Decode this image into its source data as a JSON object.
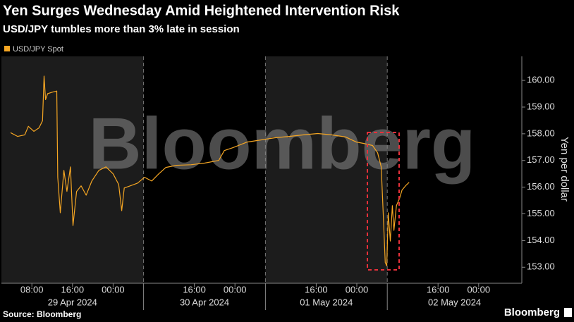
{
  "chart_data": {
    "type": "line",
    "title": "Yen Surges Wednesday Amid Heightened Intervention Risk",
    "subtitle": "USD/JPY tumbles more than 3% late in session",
    "y_label": "Yen per dollar",
    "watermark": "Bloomberg",
    "source": "Source: Bloomberg",
    "logo": "Bloomberg",
    "date_labels": [
      "29 Apr 2024",
      "30 Apr 2024",
      "01 May 2024",
      "02 May 2024"
    ],
    "day_boundaries": [
      30,
      54,
      78
    ],
    "xlim": [
      2,
      104.5
    ],
    "ylim": [
      152.4,
      160.9
    ],
    "xticks": [
      {
        "value": 8,
        "label": "08:00"
      },
      {
        "value": 16,
        "label": "16:00"
      },
      {
        "value": 24,
        "label": "00:00"
      },
      {
        "value": 40,
        "label": "16:00"
      },
      {
        "value": 48,
        "label": "00:00"
      },
      {
        "value": 64,
        "label": "16:00"
      },
      {
        "value": 72,
        "label": "00:00"
      },
      {
        "value": 88,
        "label": "16:00"
      },
      {
        "value": 96,
        "label": "00:00"
      }
    ],
    "yticks": [
      {
        "value": 153,
        "label": "153.00"
      },
      {
        "value": 154,
        "label": "154.00"
      },
      {
        "value": 155,
        "label": "155.00"
      },
      {
        "value": 156,
        "label": "156.00"
      },
      {
        "value": 157,
        "label": "157.00"
      },
      {
        "value": 158,
        "label": "158.00"
      },
      {
        "value": 159,
        "label": "159.00"
      },
      {
        "value": 160,
        "label": "160.00"
      }
    ],
    "x": [
      3.8,
      5.2,
      6.6,
      7.3,
      8.4,
      9.4,
      10.1,
      10.4,
      10.7,
      11.1,
      11.9,
      12.9,
      13.1,
      13.6,
      14.3,
      14.9,
      15.6,
      16.1,
      16.8,
      17.7,
      18.7,
      19.8,
      21.2,
      22.6,
      24.0,
      25.1,
      25.7,
      26.2,
      27.4,
      28.8,
      30.2,
      31.6,
      33.0,
      34.4,
      36.5,
      39.3,
      42.0,
      44.8,
      45.9,
      47.6,
      50.4,
      53.1,
      55.9,
      58.7,
      61.5,
      64.3,
      67.0,
      69.8,
      71.9,
      73.3,
      75.1,
      76.1,
      76.8,
      77.2,
      77.6,
      77.9,
      78.2,
      78.6,
      79.0,
      79.3,
      79.8,
      80.4,
      80.9,
      81.6,
      82.3
    ],
    "series": [
      {
        "name": "USD/JPY Spot",
        "color": "#f5a623",
        "values": [
          158.04,
          157.9,
          157.96,
          158.28,
          158.09,
          158.22,
          158.49,
          160.16,
          159.28,
          159.5,
          159.55,
          159.6,
          156.37,
          155.04,
          156.63,
          155.84,
          156.76,
          154.56,
          155.84,
          156.05,
          155.7,
          156.23,
          156.63,
          156.76,
          156.5,
          156.1,
          155.12,
          155.97,
          156.05,
          156.15,
          156.37,
          156.23,
          156.5,
          156.74,
          156.82,
          156.84,
          156.9,
          157.0,
          157.37,
          157.48,
          157.69,
          157.77,
          157.85,
          157.9,
          157.96,
          158.01,
          157.96,
          157.88,
          157.69,
          157.64,
          157.56,
          157.29,
          156.76,
          155.04,
          153.18,
          153.05,
          155.04,
          153.98,
          155.31,
          154.38,
          155.31,
          155.57,
          155.89,
          156.05,
          156.18
        ]
      }
    ]
  }
}
